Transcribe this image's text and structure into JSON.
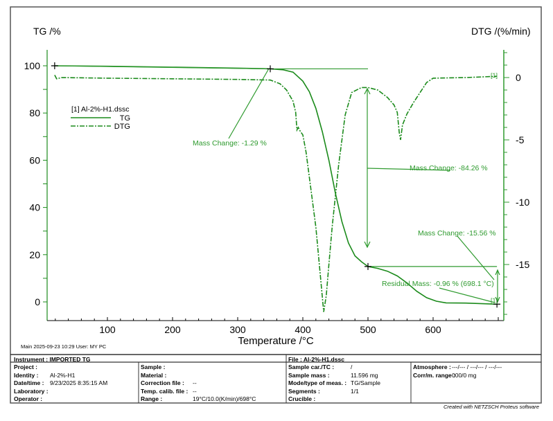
{
  "chart_data": {
    "type": "line",
    "title": "",
    "xlabel": "Temperature /°C",
    "ylabel_left": "TG /%",
    "ylabel_right": "DTG /(%/min)",
    "xlim": [
      10,
      705
    ],
    "ylim_left": [
      -8,
      107
    ],
    "ylim_right": [
      -19.3,
      2.2
    ],
    "x_ticks": [
      100,
      200,
      300,
      400,
      500,
      600
    ],
    "y_left_ticks": [
      0,
      20,
      40,
      60,
      80,
      100
    ],
    "y_right_ticks": [
      0,
      -5,
      -10,
      -15
    ],
    "grid": false,
    "legend": {
      "placement": "top-left",
      "title": "[1]  Al-2%-H1.dssc",
      "entries": [
        "TG",
        "DTG"
      ]
    },
    "series": [
      {
        "name": "TG",
        "axis": "left",
        "style": "solid",
        "x": [
          19,
          100,
          200,
          300,
          350,
          370,
          385,
          400,
          410,
          420,
          430,
          440,
          450,
          460,
          470,
          480,
          490,
          500,
          515,
          530,
          545,
          560,
          575,
          590,
          605,
          620,
          650,
          698
        ],
        "y": [
          100,
          99.8,
          99.4,
          99.0,
          98.7,
          98.3,
          97.3,
          93.5,
          89,
          82,
          72,
          60,
          46,
          34,
          25,
          19.5,
          17,
          15,
          14.2,
          13,
          11,
          8,
          4.5,
          1.8,
          0.3,
          -0.4,
          -0.5,
          -0.96
        ]
      },
      {
        "name": "DTG",
        "axis": "right",
        "style": "dashdot",
        "x": [
          19,
          22,
          30,
          100,
          200,
          300,
          350,
          365,
          375,
          385,
          389,
          391,
          393,
          396,
          400,
          405,
          410,
          420,
          428,
          432,
          436,
          440,
          445,
          455,
          465,
          475,
          490,
          500,
          515,
          530,
          540,
          545,
          548,
          550,
          553,
          560,
          570,
          580,
          590,
          600,
          650,
          698
        ],
        "y": [
          0.2,
          -0.1,
          0,
          -0.05,
          -0.1,
          -0.15,
          -0.2,
          -0.5,
          -1.0,
          -1.9,
          -2.8,
          -4.2,
          -4.0,
          -4.3,
          -4.6,
          -6,
          -8,
          -12,
          -16.5,
          -18.8,
          -17.5,
          -15,
          -12,
          -7,
          -3,
          -1.2,
          -0.8,
          -0.8,
          -1.0,
          -1.6,
          -2.2,
          -2.8,
          -4.4,
          -5.0,
          -3.8,
          -2.9,
          -2.0,
          -1.2,
          -0.4,
          -0.05,
          0.0,
          0.1
        ]
      }
    ],
    "annotations": [
      {
        "id": "mc1",
        "text": "Mass Change: -1.29 %"
      },
      {
        "id": "mc2",
        "text": "Mass Change: -84.26 %"
      },
      {
        "id": "mc3",
        "text": "Mass Change: -15.56 %"
      },
      {
        "id": "res",
        "text": "Residual Mass: -0.96 % (698.1 °C)"
      },
      {
        "id": "lbl1",
        "text": "[1]"
      },
      {
        "id": "lbl2",
        "text": "[1]"
      }
    ],
    "colors": {
      "curve": "#1a8a1a",
      "annotation": "#2e9a2e",
      "axis_right": "#2e9a2e",
      "text": "#000000"
    }
  },
  "meta_line": "Main   2025-09-23 10:29   User: MY PC",
  "info": {
    "instrument": "Instrument :  IMPORTED TG",
    "file": "File :  Al-2%-H1.dssc",
    "col1": [
      {
        "label": "Project :",
        "value": ""
      },
      {
        "label": "Identity :",
        "value": "Al-2%-H1"
      },
      {
        "label": "Date/time :",
        "value": "9/23/2025 8:35:15 AM"
      },
      {
        "label": "Laboratory :",
        "value": ""
      },
      {
        "label": "Operator :",
        "value": ""
      }
    ],
    "col2": [
      {
        "label": "Sample :",
        "value": ""
      },
      {
        "label": "Material :",
        "value": ""
      },
      {
        "label": "Correction file :",
        "value": "--"
      },
      {
        "label": "Temp. calib. file :",
        "value": "--"
      },
      {
        "label": "Range :",
        "value": "19°C/10.0(K/min)/698°C"
      }
    ],
    "col3": [
      {
        "label": "Sample car./TC :",
        "value": "/"
      },
      {
        "label": "Sample mass :",
        "value": "11.596 mg"
      },
      {
        "label": "Mode/type of meas. :",
        "value": "TG/Sample"
      },
      {
        "label": "Segments :",
        "value": "1/1"
      },
      {
        "label": "Crucible :",
        "value": ""
      }
    ],
    "col4": [
      {
        "label": "Atmosphere :",
        "value": "---/--- / ---/--- / ---/---"
      },
      {
        "label": "Corr/m. range :",
        "value": "000/0 mg"
      }
    ]
  },
  "footer": "Created with NETZSCH Proteus software"
}
